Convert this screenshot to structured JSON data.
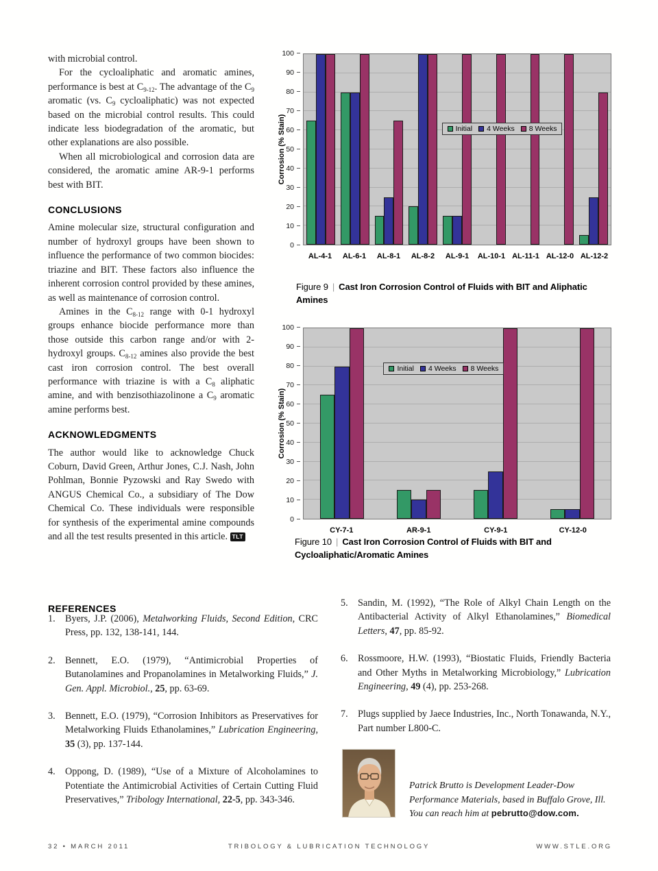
{
  "article": {
    "intro": {
      "p1": "with microbial control.",
      "p2_html": "For the cycloaliphatic and aromatic amines, performance is best at C<sub>9-12</sub>. The advantage of the C<sub>9</sub> aromatic (vs. C<sub>9</sub> cycloaliphatic) was not expected based on the microbial control results. This could indicate less biodegradation of the aromatic, but other explanations are also possible.",
      "p3": "When all microbiological and corrosion data are considered, the aromatic amine AR-9-1 performs best with BIT."
    },
    "conclusions": {
      "heading": "CONCLUSIONS",
      "p1": "Amine molecular size, structural configuration and number of hydroxyl groups have been shown to influence the performance of two common biocides: triazine and BIT. These factors also influence the inherent corrosion control provided by these amines, as well as maintenance of corrosion control.",
      "p2_html": "Amines in the C<sub>8-12</sub> range with 0-1 hydroxyl groups enhance biocide performance more than those outside this carbon range and/or with 2-hydroxyl groups. C<sub>8-12</sub> amines also provide the best cast iron corrosion control. The best overall performance with triazine is with a C<sub>8</sub> aliphatic amine, and with benzisothiazolinone a C<sub>9</sub> aromatic amine performs best."
    },
    "acknowledgments": {
      "heading": "ACKNOWLEDGMENTS",
      "p1": "The author would like to acknowledge Chuck Coburn, David Green, Arthur Jones, C.J. Nash, John Pohlman, Bonnie Pyzowski and Ray Swedo with ANGUS Chemical Co., a subsidiary of The Dow Chemical Co. These individuals were responsible for synthesis of the experimental amine compounds and all the test results presented in this article.",
      "tlt": "TLT"
    }
  },
  "figures": [
    {
      "label": "Figure 9",
      "sep": "|",
      "title": "Cast Iron Corrosion Control of Fluids with BIT and Aliphatic Amines"
    },
    {
      "label": "Figure 10",
      "sep": "|",
      "title": "Cast Iron Corrosion Control of Fluids with BIT and Cycloaliphatic/Aromatic Amines"
    }
  ],
  "references": {
    "heading": "REFERENCES",
    "items": [
      {
        "num": "1.",
        "html": "Byers, J.P. (2006), <i>Metalworking Fluids, Second Edition</i>, CRC Press, pp. 132, 138-141, 144."
      },
      {
        "num": "2.",
        "html": "Bennett, E.O. (1979), “Antimicrobial Properties of Butanolamines and Propanolamines in Metalworking Fluids,” <i>J. Gen. Appl. Microbiol.</i>, <b>25</b>, pp. 63-69."
      },
      {
        "num": "3.",
        "html": "Bennett, E.O. (1979), “Corrosion Inhibitors as Preservatives for Metalworking Fluids Ethanolamines,” <i>Lubrication Engineering</i>, <b>35</b> (3), pp. 137-144."
      },
      {
        "num": "4.",
        "html": "Oppong, D. (1989), “Use of a Mixture of Alcoholamines to Potentiate the Antimicrobial Activities of Certain Cutting Fluid Preservatives,” <i>Tribology International</i>, <b>22-5</b>, pp. 343-346."
      },
      {
        "num": "5.",
        "html": "Sandin, M. (1992), “The Role of Alkyl Chain Length on the Antibacterial Activity of Alkyl Ethanolamines,” <i>Biomedical Letters</i>, <b>47</b>, pp. 85-92."
      },
      {
        "num": "6.",
        "html": "Rossmoore, H.W. (1993), “Biostatic Fluids, Friendly Bacteria and Other Myths in Metalworking Microbiology,” <i>Lubrication Engineering</i>, <b>49</b> (4), pp. 253-268."
      },
      {
        "num": "7.",
        "html": "Plugs supplied by Jaece Industries, Inc., North Tonawanda, N.Y., Part number L800-C."
      }
    ]
  },
  "bio": {
    "html": "Patrick Brutto is Development Leader-Dow Performance Materials, based in Buffalo Grove, Ill. You can reach him at <b>pebrutto@dow.com.</b>"
  },
  "footer": {
    "left": "32 • MARCH 2011",
    "center": "TRIBOLOGY & LUBRICATION TECHNOLOGY",
    "right": "WWW.STLE.ORG"
  },
  "chart_data": [
    {
      "type": "bar",
      "title": "",
      "xlabel": "",
      "ylabel": "Corrosion (% Stain)",
      "ylim": [
        0,
        100
      ],
      "ytick_step": 10,
      "grid": true,
      "legend_position": "inside-center-right",
      "plot_bg": "#c9c9c9",
      "categories": [
        "AL-4-1",
        "AL-6-1",
        "AL-8-1",
        "AL-8-2",
        "AL-9-1",
        "AL-10-1",
        "AL-11-1",
        "AL-12-0",
        "AL-12-2"
      ],
      "series": [
        {
          "name": "Initial",
          "color": "#339966",
          "values": [
            65,
            80,
            15,
            20,
            15,
            0,
            0,
            0,
            5
          ]
        },
        {
          "name": "4 Weeks",
          "color": "#333399",
          "values": [
            100,
            80,
            25,
            100,
            15,
            0,
            0,
            0,
            25
          ]
        },
        {
          "name": "8 Weeks",
          "color": "#993366",
          "values": [
            100,
            100,
            65,
            100,
            100,
            100,
            100,
            100,
            80
          ]
        }
      ]
    },
    {
      "type": "bar",
      "title": "",
      "xlabel": "",
      "ylabel": "Corrosion (% Stain)",
      "ylim": [
        0,
        100
      ],
      "ytick_step": 10,
      "grid": true,
      "legend_position": "inside-center-left",
      "plot_bg": "#c9c9c9",
      "categories": [
        "CY-7-1",
        "AR-9-1",
        "CY-9-1",
        "CY-12-0"
      ],
      "series": [
        {
          "name": "Initial",
          "color": "#339966",
          "values": [
            65,
            15,
            15,
            5
          ]
        },
        {
          "name": "4 Weeks",
          "color": "#333399",
          "values": [
            80,
            10,
            25,
            5
          ]
        },
        {
          "name": "8 Weeks",
          "color": "#993366",
          "values": [
            100,
            15,
            100,
            100
          ]
        }
      ]
    }
  ]
}
